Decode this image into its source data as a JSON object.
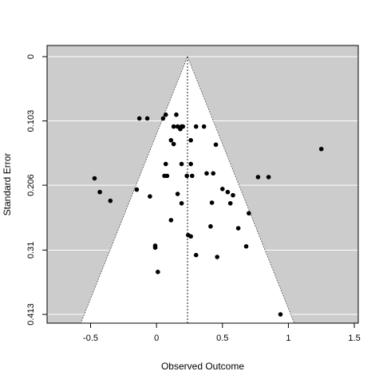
{
  "chart_data": {
    "type": "scatter",
    "plot_kind": "funnel plot",
    "xlabel": "Observed Outcome",
    "ylabel": "Standard Error",
    "xlim": [
      -0.83,
      1.53
    ],
    "ylim": [
      0,
      0.413
    ],
    "y_reversed": true,
    "x_ticks": [
      "-0.5",
      "0",
      "0.5",
      "1",
      "1.5"
    ],
    "x_tick_values": [
      -0.5,
      0,
      0.5,
      1,
      1.5
    ],
    "y_ticks": [
      "0",
      "0.103",
      "0.206",
      "0.31",
      "0.413"
    ],
    "y_tick_values": [
      0,
      0.103,
      0.206,
      0.31,
      0.413
    ],
    "center_estimate": 0.235,
    "funnel_bounds_se": [
      0,
      0.413
    ],
    "funnel_z": 1.96,
    "colors": {
      "background": "#cccccc",
      "funnel": "#ffffff",
      "gridlines": "#ffffff",
      "points": "#000000"
    },
    "points": [
      {
        "x": -0.13,
        "y": 0.099
      },
      {
        "x": -0.07,
        "y": 0.099
      },
      {
        "x": 0.05,
        "y": 0.099
      },
      {
        "x": 0.07,
        "y": 0.093
      },
      {
        "x": 0.15,
        "y": 0.093
      },
      {
        "x": 0.13,
        "y": 0.112
      },
      {
        "x": 0.16,
        "y": 0.112
      },
      {
        "x": 0.19,
        "y": 0.112
      },
      {
        "x": 0.18,
        "y": 0.116
      },
      {
        "x": 0.2,
        "y": 0.112
      },
      {
        "x": 0.3,
        "y": 0.112
      },
      {
        "x": 0.36,
        "y": 0.112
      },
      {
        "x": 0.11,
        "y": 0.134
      },
      {
        "x": 0.13,
        "y": 0.14
      },
      {
        "x": 0.26,
        "y": 0.134
      },
      {
        "x": 0.45,
        "y": 0.141
      },
      {
        "x": 1.25,
        "y": 0.148
      },
      {
        "x": 0.07,
        "y": 0.172
      },
      {
        "x": 0.19,
        "y": 0.172
      },
      {
        "x": 0.26,
        "y": 0.172
      },
      {
        "x": 0.06,
        "y": 0.191
      },
      {
        "x": 0.08,
        "y": 0.191
      },
      {
        "x": 0.23,
        "y": 0.191
      },
      {
        "x": 0.27,
        "y": 0.191
      },
      {
        "x": 0.38,
        "y": 0.187
      },
      {
        "x": 0.43,
        "y": 0.187
      },
      {
        "x": -0.47,
        "y": 0.195
      },
      {
        "x": 0.77,
        "y": 0.193
      },
      {
        "x": 0.85,
        "y": 0.193
      },
      {
        "x": -0.15,
        "y": 0.213
      },
      {
        "x": -0.43,
        "y": 0.217
      },
      {
        "x": 0.5,
        "y": 0.212
      },
      {
        "x": 0.54,
        "y": 0.217
      },
      {
        "x": 0.58,
        "y": 0.222
      },
      {
        "x": -0.35,
        "y": 0.231
      },
      {
        "x": -0.05,
        "y": 0.224
      },
      {
        "x": 0.16,
        "y": 0.22
      },
      {
        "x": 0.19,
        "y": 0.235
      },
      {
        "x": 0.42,
        "y": 0.234
      },
      {
        "x": 0.56,
        "y": 0.235
      },
      {
        "x": 0.7,
        "y": 0.251
      },
      {
        "x": 0.11,
        "y": 0.262
      },
      {
        "x": 0.41,
        "y": 0.272
      },
      {
        "x": 0.62,
        "y": 0.275
      },
      {
        "x": 0.24,
        "y": 0.286
      },
      {
        "x": 0.26,
        "y": 0.288
      },
      {
        "x": -0.01,
        "y": 0.306
      },
      {
        "x": -0.01,
        "y": 0.303
      },
      {
        "x": 0.3,
        "y": 0.318
      },
      {
        "x": 0.46,
        "y": 0.321
      },
      {
        "x": 0.68,
        "y": 0.304
      },
      {
        "x": 0.01,
        "y": 0.345
      },
      {
        "x": 0.94,
        "y": 0.413
      }
    ]
  }
}
